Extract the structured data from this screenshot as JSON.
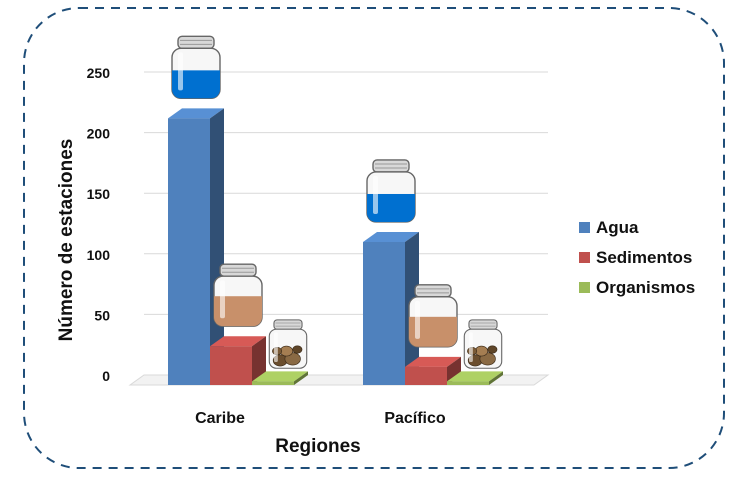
{
  "chart_data": {
    "type": "bar",
    "title": "",
    "xlabel": "Regiones",
    "ylabel": "Número de estaciones",
    "categories": [
      "Caribe",
      "Pacífico"
    ],
    "series": [
      {
        "name": "Agua",
        "values": [
          220,
          118
        ],
        "color": "#4F81BD"
      },
      {
        "name": "Sedimentos",
        "values": [
          32,
          15
        ],
        "color": "#C0504D"
      },
      {
        "name": "Organismos",
        "values": [
          3,
          3
        ],
        "color": "#9BBB59"
      }
    ],
    "ylim": [
      0,
      250
    ],
    "yticks": [
      0,
      50,
      100,
      150,
      200,
      250
    ],
    "grid": true,
    "legend": "right",
    "three_d": true,
    "illustrations": [
      "water-jar-icon",
      "sediment-jar-icon",
      "organism-jar-icon"
    ]
  }
}
